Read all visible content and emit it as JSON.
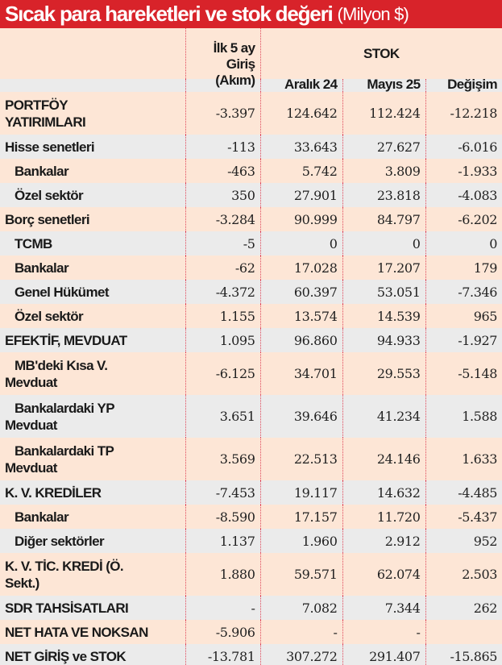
{
  "title": {
    "main": "Sıcak para hareketleri ve stok değeri",
    "unit": "(Milyon $)"
  },
  "colors": {
    "title_bg": "#d8232a",
    "row_peach": "#fde6d6",
    "row_grey": "#ebebeb",
    "divider": "#e0475a"
  },
  "header": {
    "flow": "İlk 5 ay\nGiriş\n(Akım)",
    "stock_group": "STOK",
    "columns": [
      "Aralık 24",
      "Mayıs 25",
      "Değişim"
    ]
  },
  "rows": [
    {
      "label": "PORTFÖY\nYATIRIMLARI",
      "indent": 0,
      "values": [
        "-3.397",
        "124.642",
        "112.424",
        "-12.218"
      ]
    },
    {
      "label": "Hisse senetleri",
      "indent": 0,
      "values": [
        "-113",
        "33.643",
        "27.627",
        "-6.016"
      ]
    },
    {
      "label": "Bankalar",
      "indent": 1,
      "values": [
        "-463",
        "5.742",
        "3.809",
        "-1.933"
      ]
    },
    {
      "label": "Özel sektör",
      "indent": 1,
      "values": [
        "350",
        "27.901",
        "23.818",
        "-4.083"
      ]
    },
    {
      "label": "Borç senetleri",
      "indent": 0,
      "values": [
        "-3.284",
        "90.999",
        "84.797",
        "-6.202"
      ]
    },
    {
      "label": "TCMB",
      "indent": 1,
      "values": [
        "-5",
        "0",
        "0",
        "0"
      ]
    },
    {
      "label": "Bankalar",
      "indent": 1,
      "values": [
        "-62",
        "17.028",
        "17.207",
        "179"
      ]
    },
    {
      "label": "Genel Hükümet",
      "indent": 1,
      "values": [
        "-4.372",
        "60.397",
        "53.051",
        "-7.346"
      ]
    },
    {
      "label": "Özel sektör",
      "indent": 1,
      "values": [
        "1.155",
        "13.574",
        "14.539",
        "965"
      ]
    },
    {
      "label": "EFEKTİF, MEVDUAT",
      "indent": 0,
      "values": [
        "1.095",
        "96.860",
        "94.933",
        "-1.927"
      ]
    },
    {
      "label": "MB'deki Kısa V.\nMevduat",
      "indent": 2,
      "values": [
        "-6.125",
        "34.701",
        "29.553",
        "-5.148"
      ]
    },
    {
      "label": "Bankalardaki YP\nMevduat",
      "indent": 2,
      "values": [
        "3.651",
        "39.646",
        "41.234",
        "1.588"
      ]
    },
    {
      "label": "Bankalardaki TP\nMevduat",
      "indent": 2,
      "values": [
        "3.569",
        "22.513",
        "24.146",
        "1.633"
      ]
    },
    {
      "label": "K. V. KREDİLER",
      "indent": 0,
      "values": [
        "-7.453",
        "19.117",
        "14.632",
        "-4.485"
      ]
    },
    {
      "label": "Bankalar",
      "indent": 1,
      "values": [
        "-8.590",
        "17.157",
        "11.720",
        "-5.437"
      ]
    },
    {
      "label": "Diğer sektörler",
      "indent": 1,
      "values": [
        "1.137",
        "1.960",
        "2.912",
        "952"
      ]
    },
    {
      "label": "K. V. TİC. KREDİ (Ö.\nSekt.)",
      "indent": 0,
      "values": [
        "1.880",
        "59.571",
        "62.074",
        "2.503"
      ]
    },
    {
      "label": "SDR TAHSİSATLARI",
      "indent": 0,
      "values": [
        "-",
        "7.082",
        "7.344",
        "262"
      ]
    },
    {
      "label": "NET HATA VE NOKSAN",
      "indent": 0,
      "values": [
        "-5.906",
        "-",
        "-",
        ""
      ]
    },
    {
      "label": "NET GİRİŞ ve STOK",
      "indent": 0,
      "values": [
        "-13.781",
        "307.272",
        "291.407",
        "-15.865"
      ]
    }
  ]
}
